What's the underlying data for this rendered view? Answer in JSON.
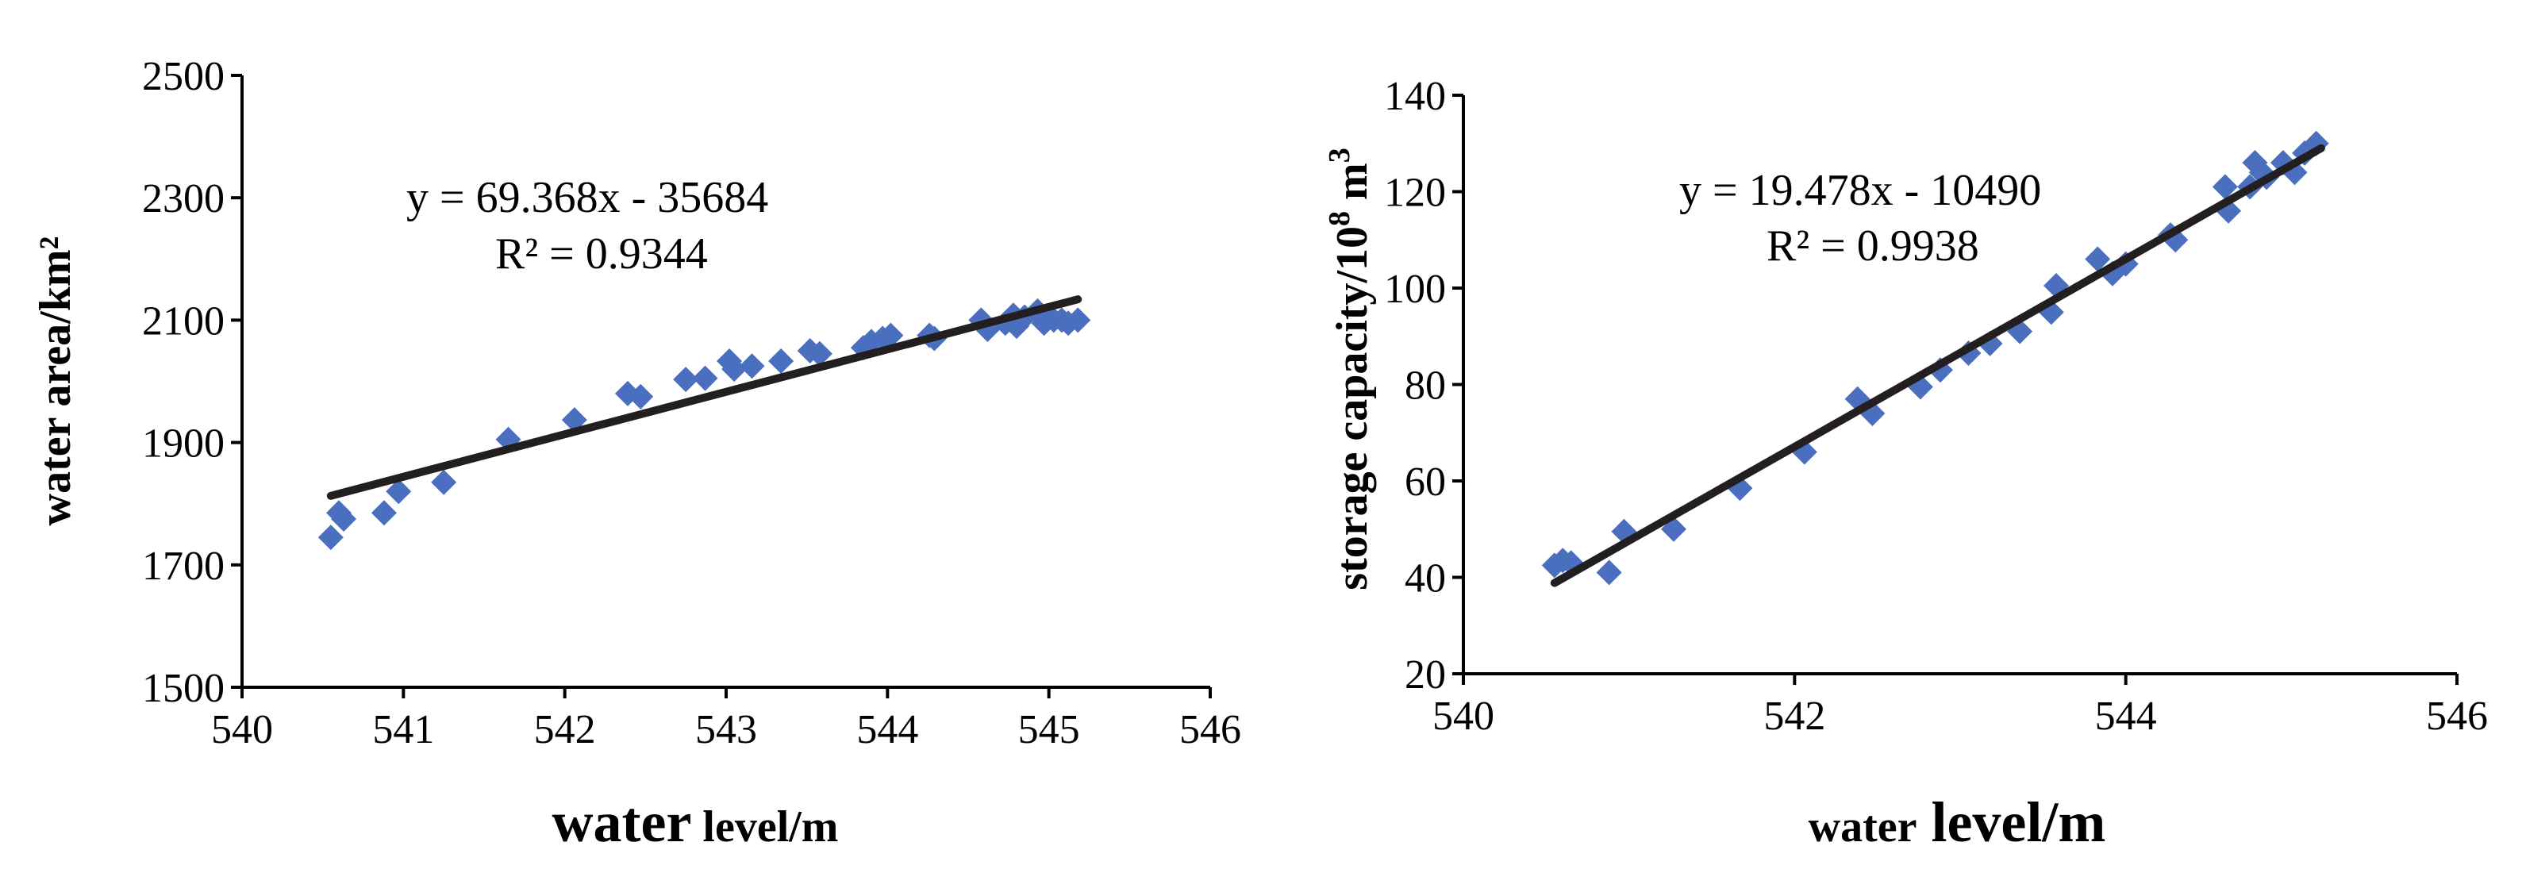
{
  "chart_data": [
    {
      "type": "scatter",
      "title": "",
      "xlabel_parts": [
        "water",
        " level/m"
      ],
      "ylabel": "water area/km²",
      "xlim": [
        540,
        546
      ],
      "ylim": [
        1500,
        2500
      ],
      "xticks": [
        "540",
        "541",
        "542",
        "543",
        "544",
        "545",
        "546"
      ],
      "yticks": [
        "1500",
        "1700",
        "1900",
        "2100",
        "2300",
        "2500"
      ],
      "equation": "y = 69.368x - 35684",
      "r2": "R² = 0.9344",
      "trendline": {
        "slope": 69.368,
        "intercept": -35684,
        "x_start": 540.55,
        "x_end": 545.18
      },
      "marker_color": "#4a6fbf",
      "series": [
        {
          "x": [
            540.55,
            540.6,
            540.63,
            540.88,
            540.97,
            541.25,
            541.65,
            542.06,
            542.39,
            542.47,
            542.75,
            542.87,
            543.02,
            543.05,
            543.16,
            543.34,
            543.52,
            543.58,
            543.85,
            543.9,
            543.97,
            544.02,
            544.26,
            544.29,
            544.58,
            544.62,
            544.73,
            544.78,
            544.8,
            544.85,
            544.93,
            544.97,
            545.0,
            545.03,
            545.08,
            545.12,
            545.18
          ],
          "y": [
            1745,
            1785,
            1775,
            1785,
            1820,
            1835,
            1905,
            1937,
            1980,
            1975,
            2003,
            2005,
            2033,
            2020,
            2025,
            2033,
            2050,
            2045,
            2055,
            2065,
            2070,
            2075,
            2075,
            2070,
            2100,
            2085,
            2095,
            2108,
            2090,
            2105,
            2115,
            2095,
            2105,
            2100,
            2100,
            2095,
            2100
          ]
        }
      ]
    },
    {
      "type": "scatter",
      "title": "",
      "xlabel_parts": [
        "water",
        " level/m"
      ],
      "ylabel_parts": [
        "storage capacity/10",
        "8",
        " m",
        "3"
      ],
      "xlim": [
        540,
        546
      ],
      "ylim": [
        20,
        140
      ],
      "xticks": [
        "540",
        "542",
        "544",
        "546"
      ],
      "yticks": [
        "20",
        "40",
        "60",
        "80",
        "100",
        "120",
        "140"
      ],
      "equation": "y = 19.478x - 10490",
      "r2": "R² = 0.9938",
      "trendline": {
        "slope": 19.478,
        "intercept": -10490,
        "x_start": 540.55,
        "x_end": 545.18
      },
      "marker_color": "#4a6fbf",
      "series": [
        {
          "x": [
            540.55,
            540.6,
            540.65,
            540.88,
            540.97,
            541.27,
            541.67,
            542.06,
            542.38,
            542.47,
            542.76,
            542.88,
            543.05,
            543.18,
            543.36,
            543.55,
            543.58,
            543.83,
            543.92,
            544.0,
            544.27,
            544.3,
            544.6,
            544.62,
            544.75,
            544.78,
            544.82,
            544.85,
            544.95,
            545.02,
            545.08,
            545.15
          ],
          "y": [
            42.5,
            43.5,
            43,
            41,
            49.5,
            50,
            58.5,
            66,
            77,
            74,
            79.5,
            83,
            86.5,
            88.5,
            91,
            95,
            100.5,
            106,
            103,
            105,
            111,
            110,
            121,
            116,
            121,
            126,
            124,
            123,
            126,
            124,
            128,
            130
          ]
        }
      ]
    }
  ]
}
